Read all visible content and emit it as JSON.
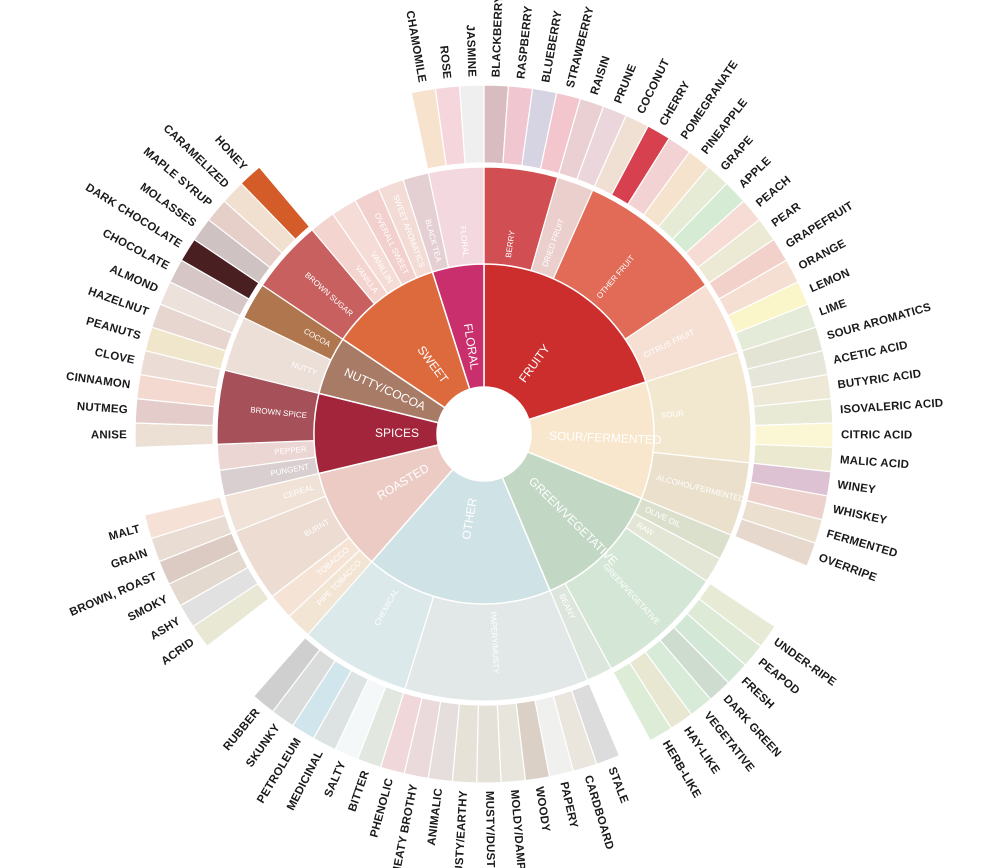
{
  "categories": [
    {
      "label": "FRUITY",
      "color": "#cc2e2d",
      "sub": [
        {
          "label": "BERRY",
          "color": "#d14f52",
          "items": [
            {
              "label": "BLACKBERRY",
              "color": "#d9bcc0"
            },
            {
              "label": "RASPBERRY",
              "color": "#f0c6d0"
            },
            {
              "label": "BLUEBERRY",
              "color": "#d6d3e3"
            },
            {
              "label": "STRAWBERRY",
              "color": "#f2c6cc"
            }
          ]
        },
        {
          "label": "DRIED FRUIT",
          "color": "#ebcfcd",
          "items": [
            {
              "label": "RAISIN",
              "color": "#ead0d2"
            },
            {
              "label": "PRUNE",
              "color": "#ebd6dc"
            }
          ]
        },
        {
          "label": "OTHER FRUIT",
          "color": "#e26b57",
          "items": [
            {
              "label": "COCONUT",
              "color": "#f0dfd3"
            },
            {
              "label": "CHERRY",
              "color": "#d7404e"
            },
            {
              "label": "POMEGRANATE",
              "color": "#f3d2d3"
            },
            {
              "label": "PINEAPPLE",
              "color": "#f5e3cd"
            },
            {
              "label": "GRAPE",
              "color": "#e5ebd5"
            },
            {
              "label": "APPLE",
              "color": "#d6ebd3"
            },
            {
              "label": "PEACH",
              "color": "#f6dcd4"
            },
            {
              "label": "PEAR",
              "color": "#ece9d4"
            }
          ]
        },
        {
          "label": "CITRUS FRUIT",
          "color": "#f6dfd3",
          "items": [
            {
              "label": "GRAPEFRUIT",
              "color": "#f3d1cb"
            },
            {
              "label": "ORANGE",
              "color": "#f5dfd3"
            },
            {
              "label": "LEMON",
              "color": "#fbf6c9"
            },
            {
              "label": "LIME",
              "color": "#e4ebd9"
            }
          ]
        }
      ]
    },
    {
      "label": "SOUR/FERMENTED",
      "color": "#f8e7cc",
      "sub": [
        {
          "label": "SOUR",
          "color": "#f2e8cf",
          "items": [
            {
              "label": "SOUR AROMATICS",
              "color": "#e4e4d4"
            },
            {
              "label": "ACETIC ACID",
              "color": "#e6e6db"
            },
            {
              "label": "BUTYRIC ACID",
              "color": "#ede9d6"
            },
            {
              "label": "ISOVALERIC ACID",
              "color": "#e8ead6"
            },
            {
              "label": "CITRIC ACID",
              "color": "#fbf6d3"
            },
            {
              "label": "MALIC ACID",
              "color": "#ebe9cf"
            }
          ]
        },
        {
          "label": "ALCOHOL/FERMENTED",
          "color": "#eae0cc",
          "items": [
            {
              "label": "WINEY",
              "color": "#dcc2d2"
            },
            {
              "label": "WHISKEY",
              "color": "#ecd1cc"
            },
            {
              "label": "FERMENTED",
              "color": "#ebdfd0"
            },
            {
              "label": "OVERRIPE",
              "color": "#e6d8cd"
            }
          ]
        }
      ]
    },
    {
      "label": "GREEN/VEGETATIVE",
      "color": "#c2d7c4",
      "sub": [
        {
          "label": "OLIVE OIL",
          "color": "#dbe0cd",
          "items": []
        },
        {
          "label": "RAW",
          "color": "#e4e6d5",
          "items": []
        },
        {
          "label": "GREEN/VEGETATIVE",
          "color": "#d4e6d5",
          "items": [
            {
              "label": "UNDER-RIPE",
              "color": "#e7ebd5"
            },
            {
              "label": "PEAPOD",
              "color": "#dcead6"
            },
            {
              "label": "FRESH",
              "color": "#d3e7d7"
            },
            {
              "label": "DARK GREEN",
              "color": "#cedcd0"
            },
            {
              "label": "VEGETATIVE",
              "color": "#d8ead8"
            },
            {
              "label": "HAY-LIKE",
              "color": "#e7e7d2"
            },
            {
              "label": "HERB-LIKE",
              "color": "#dcecd6"
            }
          ]
        },
        {
          "label": "BEANY",
          "color": "#dde6dd",
          "items": []
        }
      ]
    },
    {
      "label": "OTHER",
      "color": "#cfe2e6",
      "sub": [
        {
          "label": "PAPERY/MUSTY",
          "color": "#e2e8e7",
          "items": [
            {
              "label": "STALE",
              "color": "#dcdcdc"
            },
            {
              "label": "CARDBOARD",
              "color": "#eae6de"
            },
            {
              "label": "PAPERY",
              "color": "#f0f0ef"
            },
            {
              "label": "WOODY",
              "color": "#dbd0c5"
            },
            {
              "label": "MOLDY/DAMP",
              "color": "#e8e5dc"
            },
            {
              "label": "MUSTY/DUSTY",
              "color": "#e4e2d8"
            },
            {
              "label": "MUSTY/EARTHY",
              "color": "#e6e2d7"
            },
            {
              "label": "ANIMALIC",
              "color": "#e5dedd"
            },
            {
              "label": "MEATY BROTHY",
              "color": "#ebdadb"
            },
            {
              "label": "PHENOLIC",
              "color": "#f0d7d9"
            }
          ]
        },
        {
          "label": "CHEMICAL",
          "color": "#dbe9eb",
          "items": [
            {
              "label": "BITTER",
              "color": "#e2e7e0"
            },
            {
              "label": "SALTY",
              "color": "#f4f8f9"
            },
            {
              "label": "MEDICINAL",
              "color": "#dde2e3"
            },
            {
              "label": "PETROLEUM",
              "color": "#d1e5ec"
            },
            {
              "label": "SKUNKY",
              "color": "#dadcdc"
            },
            {
              "label": "RUBBER",
              "color": "#cfcfcf"
            }
          ]
        }
      ]
    },
    {
      "label": "ROASTED",
      "color": "#ebcbc4",
      "sub": [
        {
          "label": "PIPE TOBACCO",
          "color": "#f3e5d3",
          "items": []
        },
        {
          "label": "TOBACCO",
          "color": "#f5e4d6",
          "items": []
        },
        {
          "label": "BURNT",
          "color": "#eddcd2",
          "items": [
            {
              "label": "ACRID",
              "color": "#e9e8d4"
            },
            {
              "label": "ASHY",
              "color": "#e1e1e1"
            },
            {
              "label": "SMOKY",
              "color": "#e3d9ce"
            },
            {
              "label": "BROWN, ROAST",
              "color": "#dbcbc2"
            }
          ]
        },
        {
          "label": "CEREAL",
          "color": "#f0e2d6",
          "items": [
            {
              "label": "GRAIN",
              "color": "#e9ddd3"
            },
            {
              "label": "MALT",
              "color": "#f5e1d6"
            }
          ]
        }
      ]
    },
    {
      "label": "SPICES",
      "color": "#a3253b",
      "sub": [
        {
          "label": "PUNGENT",
          "color": "#d9cfd0",
          "items": []
        },
        {
          "label": "PEPPER",
          "color": "#ecd6d3",
          "items": []
        },
        {
          "label": "BROWN SPICE",
          "color": "#a6515a",
          "items": [
            {
              "label": "ANISE",
              "color": "#ebe0d3"
            },
            {
              "label": "NUTMEG",
              "color": "#e3ccc9"
            },
            {
              "label": "CINNAMON",
              "color": "#f3d9cf"
            },
            {
              "label": "CLOVE",
              "color": "#ebdcd5"
            }
          ]
        }
      ]
    },
    {
      "label": "NUTTY/COCOA",
      "color": "#a87b66",
      "sub": [
        {
          "label": "NUTTY",
          "color": "#ecdfd8",
          "items": [
            {
              "label": "PEANUTS",
              "color": "#efe6cb"
            },
            {
              "label": "HAZELNUT",
              "color": "#e6d6cf"
            },
            {
              "label": "ALMOND",
              "color": "#ede1db"
            }
          ]
        },
        {
          "label": "COCOA",
          "color": "#b0774f",
          "items": [
            {
              "label": "CHOCOLATE",
              "color": "#d6c7c6"
            },
            {
              "label": "DARK CHOCOLATE",
              "color": "#4a1f22"
            }
          ]
        }
      ]
    },
    {
      "label": "SWEET",
      "color": "#dc6a3c",
      "sub": [
        {
          "label": "BROWN SUGAR",
          "color": "#c96060",
          "items": [
            {
              "label": "MOLASSES",
              "color": "#cfc2c2"
            },
            {
              "label": "MAPLE SYRUP",
              "color": "#e7cfc9"
            },
            {
              "label": "CARAMELIZED",
              "color": "#f1e0cf"
            },
            {
              "label": "HONEY",
              "color": "#d35c28"
            }
          ]
        },
        {
          "label": "VANILLA",
          "color": "#f4d4cf",
          "items": []
        },
        {
          "label": "VANILLIN",
          "color": "#f6dcd6",
          "items": []
        },
        {
          "label": "OVERALL SWEET",
          "color": "#f2d0cd",
          "items": []
        },
        {
          "label": "SWEET AROMATICS",
          "color": "#f4dcd6",
          "items": []
        }
      ]
    },
    {
      "label": "FLORAL",
      "color": "#c92e6d",
      "sub": [
        {
          "label": "BLACK TEA",
          "color": "#e4cfd3",
          "items": []
        },
        {
          "label": "FLORAL",
          "color": "#f3d8e0",
          "items": [
            {
              "label": "CHAMOMILE",
              "color": "#f7e3cd"
            },
            {
              "label": "ROSE",
              "color": "#f5d6dd"
            },
            {
              "label": "JASMINE",
              "color": "#efefef"
            }
          ]
        }
      ]
    }
  ]
}
